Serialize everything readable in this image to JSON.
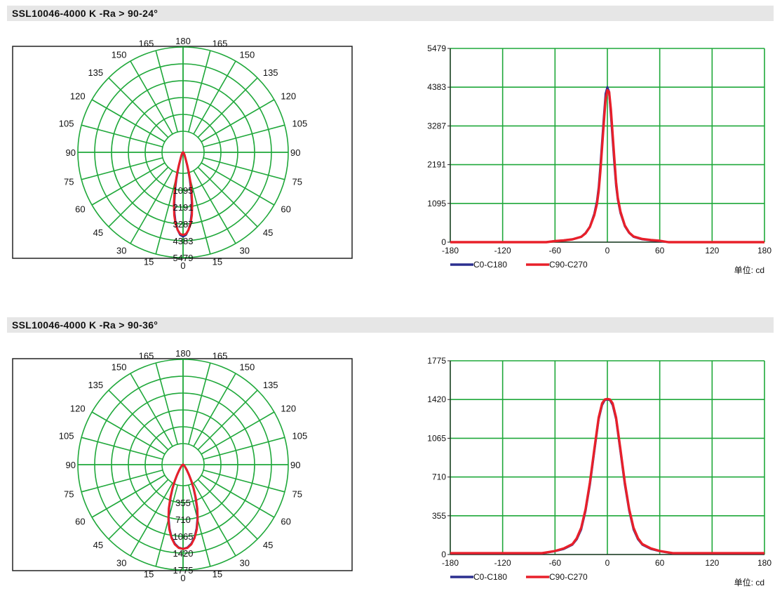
{
  "sections": [
    {
      "title": "SSL10046-4000 K -Ra > 90-24°",
      "polar": {
        "angle_labels": [
          "180",
          "165",
          "165",
          "150",
          "150",
          "135",
          "135",
          "120",
          "120",
          "105",
          "105",
          "90",
          "90",
          "75",
          "75",
          "60",
          "60",
          "45",
          "45",
          "30",
          "30",
          "15",
          "15",
          "0"
        ],
        "radial_labels": [
          "1095",
          "2191",
          "3287",
          "4383",
          "5479"
        ]
      },
      "cartesian": {
        "y_ticks": [
          "5479",
          "4383",
          "3287",
          "2191",
          "1095",
          "0"
        ],
        "x_ticks": [
          "-180",
          "-120",
          "-60",
          "0",
          "60",
          "120",
          "180"
        ],
        "legend": [
          "C0-C180",
          "C90-C270"
        ],
        "unit_label": "单位:  cd"
      }
    },
    {
      "title": "SSL10046-4000 K -Ra > 90-36°",
      "polar": {
        "angle_labels": [
          "180",
          "165",
          "165",
          "150",
          "150",
          "135",
          "135",
          "120",
          "120",
          "105",
          "105",
          "90",
          "90",
          "75",
          "75",
          "60",
          "60",
          "45",
          "45",
          "30",
          "30",
          "15",
          "15",
          "0"
        ],
        "radial_labels": [
          "355",
          "710",
          "1065",
          "1420",
          "1775"
        ]
      },
      "cartesian": {
        "y_ticks": [
          "1775",
          "1420",
          "1065",
          "710",
          "355",
          "0"
        ],
        "x_ticks": [
          "-180",
          "-120",
          "-60",
          "0",
          "60",
          "120",
          "180"
        ],
        "legend": [
          "C0-C180",
          "C90-C270"
        ],
        "unit_label": "单位:  cd"
      }
    }
  ],
  "chart_data": [
    {
      "type": "polar",
      "title": "SSL10046-4000 K -Ra > 90-24°",
      "r_max": 5479,
      "r_ticks": [
        1095,
        2191,
        3287,
        4383,
        5479
      ],
      "series": [
        {
          "name": "C0-C180",
          "color": "#2b2f8f",
          "angles": [
            0,
            2,
            4,
            6,
            8,
            10,
            12,
            14,
            16,
            18,
            20,
            25,
            30,
            40,
            60,
            90
          ],
          "values": [
            4383,
            4300,
            4050,
            3700,
            3200,
            2600,
            2000,
            1450,
            1000,
            650,
            420,
            220,
            140,
            70,
            30,
            0
          ]
        },
        {
          "name": "C90-C270",
          "color": "#e8202a",
          "angles": [
            0,
            2,
            4,
            6,
            8,
            10,
            12,
            14,
            16,
            18,
            20,
            25,
            30,
            40,
            60,
            90
          ],
          "values": [
            4300,
            4250,
            4050,
            3750,
            3300,
            2750,
            2150,
            1600,
            1100,
            720,
            460,
            240,
            150,
            75,
            30,
            0
          ]
        }
      ]
    },
    {
      "type": "line",
      "title": "SSL10046-4000 K -Ra > 90-24°",
      "xlabel": "",
      "ylabel": "",
      "xlim": [
        -180,
        180
      ],
      "ylim": [
        0,
        5479
      ],
      "y_ticks": [
        0,
        1095,
        2191,
        3287,
        4383,
        5479
      ],
      "x_ticks": [
        -180,
        -120,
        -60,
        0,
        60,
        120,
        180
      ],
      "grid": true,
      "legend_position": "bottom-left",
      "unit": "cd",
      "series": [
        {
          "name": "C0-C180",
          "color": "#2b2f8f",
          "x": [
            -180,
            -100,
            -70,
            -60,
            -50,
            -40,
            -30,
            -25,
            -20,
            -15,
            -12,
            -10,
            -8,
            -6,
            -4,
            -2,
            0,
            2,
            4,
            6,
            8,
            10,
            12,
            15,
            20,
            25,
            30,
            40,
            50,
            60,
            70,
            100,
            180
          ],
          "y": [
            0,
            0,
            0,
            30,
            50,
            80,
            150,
            260,
            440,
            800,
            1150,
            1550,
            2150,
            2850,
            3550,
            4200,
            4383,
            4250,
            3600,
            2900,
            2200,
            1600,
            1200,
            820,
            450,
            260,
            150,
            80,
            50,
            30,
            0,
            0,
            0
          ]
        },
        {
          "name": "C90-C270",
          "color": "#e8202a",
          "x": [
            -180,
            -100,
            -70,
            -60,
            -50,
            -40,
            -30,
            -25,
            -20,
            -15,
            -12,
            -10,
            -8,
            -6,
            -4,
            -2,
            0,
            2,
            4,
            6,
            8,
            10,
            12,
            15,
            20,
            25,
            30,
            40,
            50,
            60,
            70,
            100,
            180
          ],
          "y": [
            0,
            0,
            0,
            30,
            50,
            80,
            150,
            250,
            430,
            760,
            1080,
            1450,
            2000,
            2700,
            3400,
            4050,
            4300,
            4250,
            3750,
            3050,
            2350,
            1700,
            1250,
            860,
            470,
            270,
            160,
            90,
            60,
            40,
            0,
            0,
            0
          ]
        }
      ]
    },
    {
      "type": "polar",
      "title": "SSL10046-4000 K -Ra > 90-36°",
      "r_max": 1775,
      "r_ticks": [
        355,
        710,
        1065,
        1420,
        1775
      ],
      "series": [
        {
          "name": "C0-C180",
          "color": "#2b2f8f",
          "angles": [
            0,
            3,
            6,
            9,
            12,
            15,
            18,
            21,
            24,
            27,
            30,
            35,
            40,
            50,
            60,
            90
          ],
          "values": [
            1420,
            1400,
            1340,
            1240,
            1100,
            940,
            760,
            580,
            430,
            300,
            200,
            110,
            60,
            30,
            15,
            0
          ]
        },
        {
          "name": "C90-C270",
          "color": "#e8202a",
          "angles": [
            0,
            3,
            6,
            9,
            12,
            15,
            18,
            21,
            24,
            27,
            30,
            35,
            40,
            50,
            60,
            90
          ],
          "values": [
            1420,
            1405,
            1350,
            1250,
            1115,
            955,
            780,
            600,
            445,
            315,
            210,
            115,
            65,
            30,
            15,
            0
          ]
        }
      ]
    },
    {
      "type": "line",
      "title": "SSL10046-4000 K -Ra > 90-36°",
      "xlabel": "",
      "ylabel": "",
      "xlim": [
        -180,
        180
      ],
      "ylim": [
        0,
        1775
      ],
      "y_ticks": [
        0,
        355,
        710,
        1065,
        1420,
        1775
      ],
      "x_ticks": [
        -180,
        -120,
        -60,
        0,
        60,
        120,
        180
      ],
      "grid": true,
      "legend_position": "bottom-left",
      "unit": "cd",
      "series": [
        {
          "name": "C0-C180",
          "color": "#2b2f8f",
          "x": [
            -180,
            -90,
            -75,
            -60,
            -50,
            -40,
            -35,
            -30,
            -25,
            -20,
            -15,
            -10,
            -6,
            -3,
            0,
            3,
            6,
            10,
            15,
            20,
            25,
            30,
            35,
            40,
            50,
            60,
            75,
            90,
            180
          ],
          "y": [
            10,
            10,
            10,
            30,
            50,
            90,
            140,
            230,
            400,
            640,
            940,
            1240,
            1370,
            1415,
            1420,
            1415,
            1370,
            1240,
            940,
            640,
            400,
            230,
            140,
            90,
            50,
            30,
            10,
            10,
            10
          ]
        },
        {
          "name": "C90-C270",
          "color": "#e8202a",
          "x": [
            -180,
            -90,
            -75,
            -60,
            -50,
            -40,
            -35,
            -30,
            -25,
            -20,
            -15,
            -10,
            -6,
            -3,
            0,
            3,
            6,
            10,
            15,
            20,
            25,
            30,
            35,
            40,
            50,
            60,
            75,
            90,
            180
          ],
          "y": [
            12,
            12,
            12,
            32,
            55,
            95,
            150,
            245,
            415,
            660,
            960,
            1255,
            1385,
            1420,
            1425,
            1420,
            1385,
            1255,
            960,
            660,
            415,
            245,
            150,
            95,
            55,
            32,
            12,
            12,
            12
          ]
        }
      ]
    }
  ]
}
